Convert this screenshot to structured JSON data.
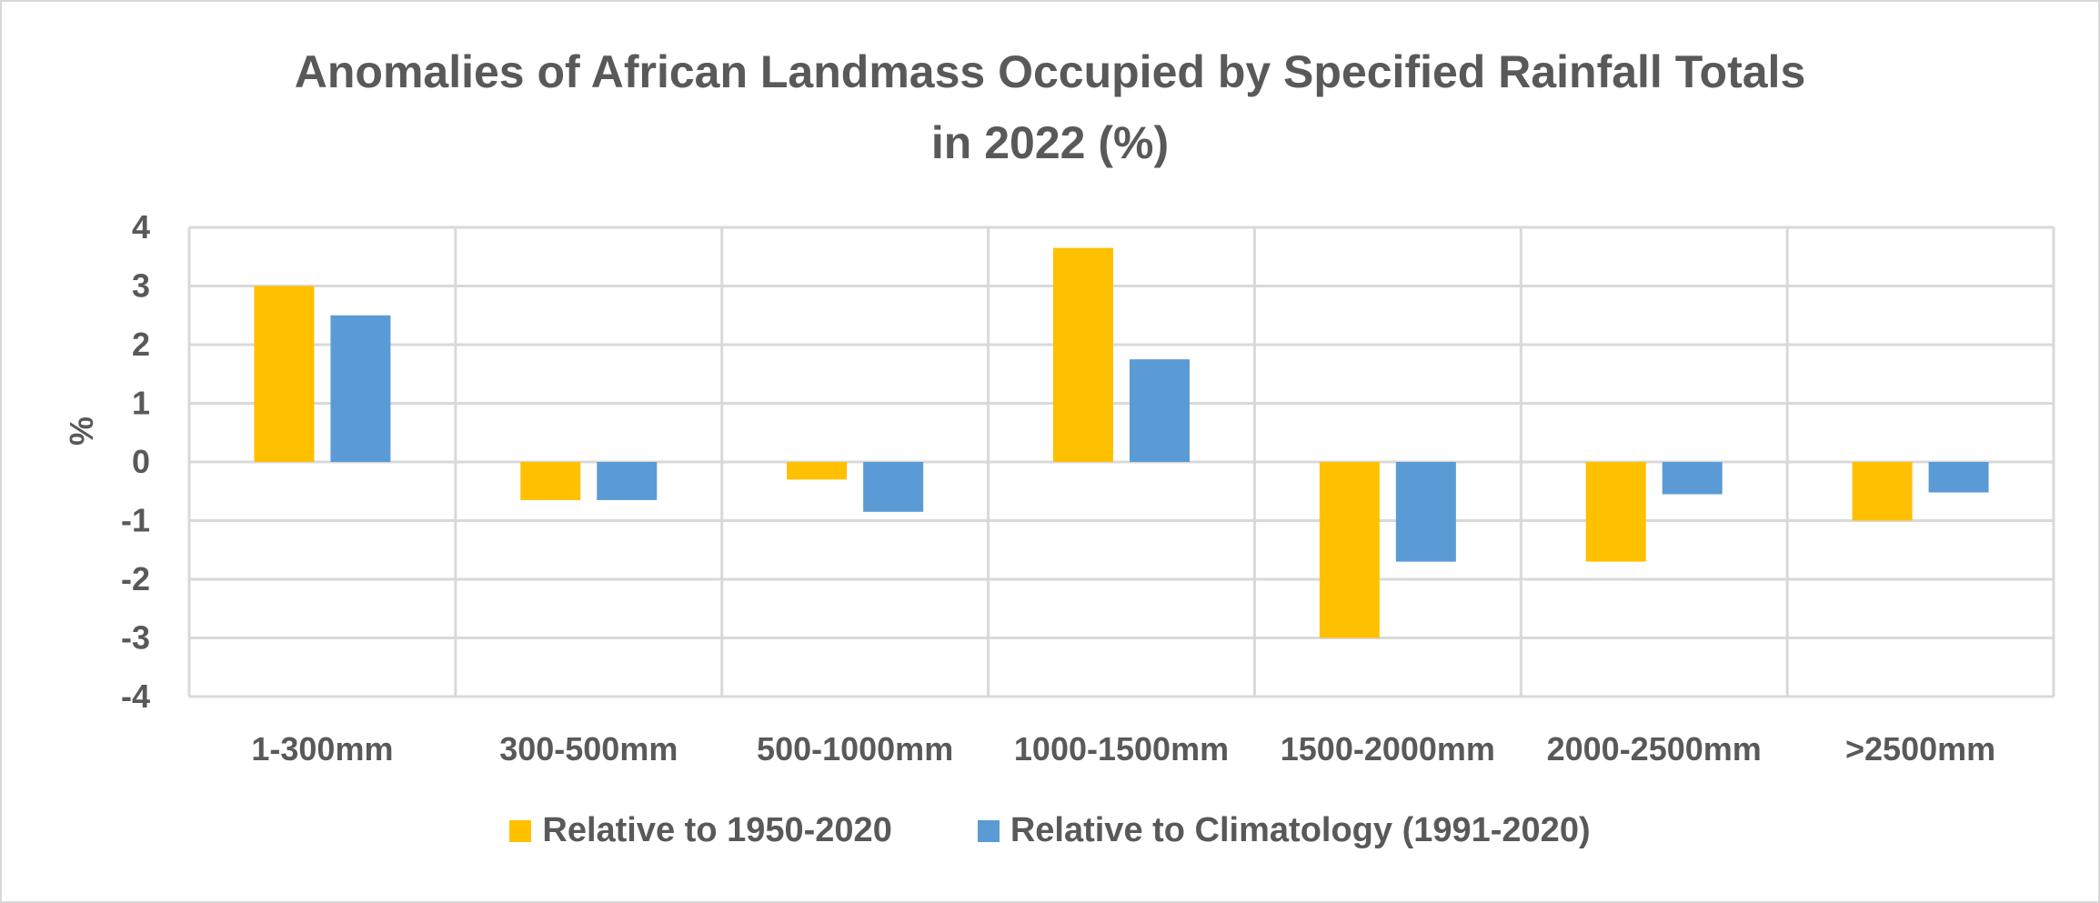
{
  "chart_data": {
    "type": "bar",
    "title_lines": [
      "Anomalies of African Landmass Occupied by Specified Rainfall Totals",
      "in 2022 (%)"
    ],
    "xlabel": "",
    "ylabel": "%",
    "ylim": [
      -4,
      4
    ],
    "yticks": [
      "4",
      "3",
      "2",
      "1",
      "0",
      "-1",
      "-2",
      "-3",
      "-4"
    ],
    "grid": true,
    "legend_position": "bottom",
    "categories": [
      "1-300mm",
      "300-500mm",
      "500-1000mm",
      "1000-1500mm",
      "1500-2000mm",
      "2000-2500mm",
      ">2500mm"
    ],
    "series": [
      {
        "name": "Relative to 1950-2020",
        "color": "#FFC000",
        "values": [
          3.0,
          -0.65,
          -0.3,
          3.65,
          -3.0,
          -1.7,
          -1.0
        ]
      },
      {
        "name": "Relative to Climatology (1991-2020)",
        "color": "#5B9BD5",
        "values": [
          2.5,
          -0.65,
          -0.85,
          1.75,
          -1.7,
          -0.55,
          -0.52
        ]
      }
    ]
  }
}
